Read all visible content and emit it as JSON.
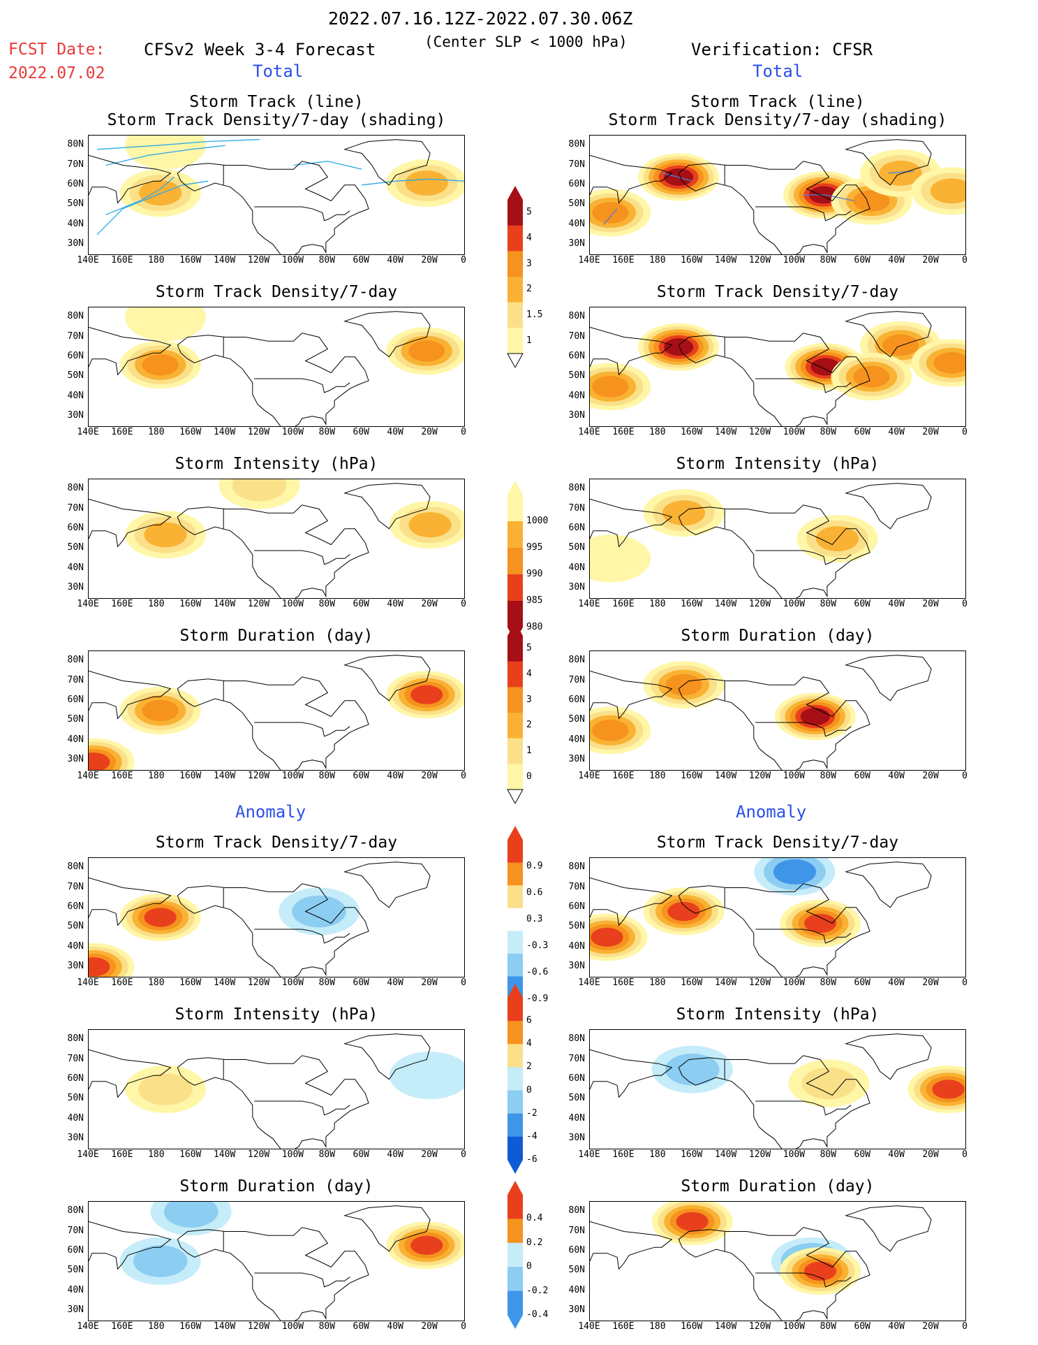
{
  "header": {
    "period": "2022.07.16.12Z-2022.07.30.06Z",
    "condition": "(Center SLP < 1000 hPa)",
    "fcst_label": "FCST Date:",
    "fcst_date": "2022.07.02",
    "forecast_title": "CFSv2 Week 3-4 Forecast",
    "verification_title": "Verification: CFSR",
    "total_left": "Total",
    "total_right": "Total",
    "anomaly_left": "Anomaly",
    "anomaly_right": "Anomaly"
  },
  "axes": {
    "lat_labels": [
      "80N",
      "70N",
      "60N",
      "50N",
      "40N",
      "30N"
    ],
    "lon_labels": [
      "140E",
      "160E",
      "180",
      "160W",
      "140W",
      "120W",
      "100W",
      "80W",
      "60W",
      "40W",
      "20W",
      "0"
    ]
  },
  "colors": {
    "pos": [
      "#fff6a8",
      "#fbe08a",
      "#f9b233",
      "#f6921e",
      "#e8401c",
      "#a50f15"
    ],
    "neg": [
      "#c5ecf9",
      "#8ccdf2",
      "#3f95e8",
      "#0f5bd6"
    ],
    "track_fcst": "#2aa9e8",
    "track_obs": "#4f7fd6"
  },
  "panels": [
    {
      "id": "fcst-track",
      "title1": "Storm Track (line)",
      "title2": "Storm Track Density/7-day (shading)"
    },
    {
      "id": "obs-track",
      "title1": "Storm Track (line)",
      "title2": "Storm Track Density/7-day (shading)"
    },
    {
      "id": "fcst-density",
      "title1": "Storm Track Density/7-day",
      "title2": ""
    },
    {
      "id": "obs-density",
      "title1": "Storm Track Density/7-day",
      "title2": ""
    },
    {
      "id": "fcst-intensity",
      "title1": "Storm Intensity (hPa)",
      "title2": ""
    },
    {
      "id": "obs-intensity",
      "title1": "Storm Intensity (hPa)",
      "title2": ""
    },
    {
      "id": "fcst-duration",
      "title1": "Storm Duration (day)",
      "title2": ""
    },
    {
      "id": "obs-duration",
      "title1": "Storm Duration (day)",
      "title2": ""
    },
    {
      "id": "fcst-anom-density",
      "title1": "Storm Track Density/7-day",
      "title2": ""
    },
    {
      "id": "obs-anom-density",
      "title1": "Storm Track Density/7-day",
      "title2": ""
    },
    {
      "id": "fcst-anom-intensity",
      "title1": "Storm Intensity (hPa)",
      "title2": ""
    },
    {
      "id": "obs-anom-intensity",
      "title1": "Storm Intensity (hPa)",
      "title2": ""
    },
    {
      "id": "fcst-anom-duration",
      "title1": "Storm Duration (day)",
      "title2": ""
    },
    {
      "id": "obs-anom-duration",
      "title1": "Storm Duration (day)",
      "title2": ""
    }
  ],
  "colorbars": {
    "density": [
      "5",
      "4",
      "3",
      "2",
      "1.5",
      "1"
    ],
    "intensity": [
      "1000",
      "995",
      "990",
      "985",
      "980"
    ],
    "duration": [
      "5",
      "4",
      "3",
      "2",
      "1",
      "0"
    ],
    "anom_density": [
      "0.9",
      "0.6",
      "0.3",
      "-0.3",
      "-0.6",
      "-0.9"
    ],
    "anom_intensity": [
      "6",
      "4",
      "2",
      "0",
      "-2",
      "-4",
      "-6"
    ],
    "anom_duration": [
      "0.4",
      "0.2",
      "0",
      "-0.2",
      "-0.4"
    ]
  },
  "chart_data": {
    "type": "heatmap",
    "projection": "lat-lon",
    "lon_range": [
      "140E",
      "0"
    ],
    "lat_range": [
      "25N",
      "85N"
    ],
    "fields": [
      {
        "panel": "fcst-track",
        "blobs": [
          {
            "lon": -178,
            "lat": 56,
            "level": 2
          },
          {
            "lon": -22,
            "lat": 61,
            "level": 2
          },
          {
            "lon": -175,
            "lat": 80,
            "level": 0
          }
        ]
      },
      {
        "panel": "obs-track",
        "blobs": [
          {
            "lon": -168,
            "lat": 64,
            "level": 5
          },
          {
            "lon": -83,
            "lat": 55,
            "level": 5
          },
          {
            "lon": -55,
            "lat": 52,
            "level": 3
          },
          {
            "lon": 152,
            "lat": 46,
            "level": 3
          },
          {
            "lon": -38,
            "lat": 66,
            "level": 2
          },
          {
            "lon": -8,
            "lat": 57,
            "level": 2
          }
        ]
      },
      {
        "panel": "fcst-density",
        "blobs": [
          {
            "lon": -178,
            "lat": 56,
            "level": 3
          },
          {
            "lon": -22,
            "lat": 63,
            "level": 3
          },
          {
            "lon": -175,
            "lat": 80,
            "level": 0
          }
        ]
      },
      {
        "panel": "obs-density",
        "blobs": [
          {
            "lon": -168,
            "lat": 65,
            "level": 5
          },
          {
            "lon": -82,
            "lat": 55,
            "level": 5
          },
          {
            "lon": 152,
            "lat": 45,
            "level": 3
          },
          {
            "lon": -38,
            "lat": 66,
            "level": 3
          },
          {
            "lon": -8,
            "lat": 57,
            "level": 3
          },
          {
            "lon": -55,
            "lat": 50,
            "level": 3
          }
        ]
      },
      {
        "panel": "fcst-intensity",
        "blobs": [
          {
            "lon": -175,
            "lat": 57,
            "level": 2
          },
          {
            "lon": -20,
            "lat": 62,
            "level": 2
          },
          {
            "lon": -120,
            "lat": 82,
            "level": 1
          }
        ]
      },
      {
        "panel": "obs-intensity",
        "blobs": [
          {
            "lon": -165,
            "lat": 68,
            "level": 2
          },
          {
            "lon": -75,
            "lat": 55,
            "level": 2
          },
          {
            "lon": 152,
            "lat": 45,
            "level": 0
          }
        ]
      },
      {
        "panel": "fcst-duration",
        "blobs": [
          {
            "lon": -178,
            "lat": 55,
            "level": 3
          },
          {
            "lon": -22,
            "lat": 63,
            "level": 4
          },
          {
            "lon": 143,
            "lat": 29,
            "level": 4
          }
        ]
      },
      {
        "panel": "obs-duration",
        "blobs": [
          {
            "lon": -165,
            "lat": 68,
            "level": 3
          },
          {
            "lon": -88,
            "lat": 52,
            "level": 5
          },
          {
            "lon": 152,
            "lat": 45,
            "level": 3
          }
        ]
      },
      {
        "panel": "fcst-anom-density",
        "blobs": [
          {
            "lon": -178,
            "lat": 55,
            "level": 4
          },
          {
            "lon": -85,
            "lat": 58,
            "level": -2
          },
          {
            "lon": 143,
            "lat": 30,
            "level": 4
          }
        ]
      },
      {
        "panel": "obs-anom-density",
        "blobs": [
          {
            "lon": -165,
            "lat": 58,
            "level": 4
          },
          {
            "lon": -85,
            "lat": 52,
            "level": 4
          },
          {
            "lon": 150,
            "lat": 45,
            "level": 4
          },
          {
            "lon": -100,
            "lat": 78,
            "level": -3
          }
        ]
      },
      {
        "panel": "fcst-anom-intensity",
        "blobs": [
          {
            "lon": -175,
            "lat": 55,
            "level": 1
          },
          {
            "lon": -20,
            "lat": 62,
            "level": -1
          }
        ]
      },
      {
        "panel": "obs-anom-intensity",
        "blobs": [
          {
            "lon": -160,
            "lat": 65,
            "level": -2
          },
          {
            "lon": -80,
            "lat": 58,
            "level": 1
          },
          {
            "lon": -10,
            "lat": 55,
            "level": 4
          }
        ]
      },
      {
        "panel": "fcst-anom-duration",
        "blobs": [
          {
            "lon": -178,
            "lat": 55,
            "level": -2
          },
          {
            "lon": -22,
            "lat": 63,
            "level": 4
          },
          {
            "lon": -160,
            "lat": 80,
            "level": -2
          }
        ]
      },
      {
        "panel": "obs-anom-duration",
        "blobs": [
          {
            "lon": -90,
            "lat": 55,
            "level": -3
          },
          {
            "lon": -85,
            "lat": 50,
            "level": 4
          },
          {
            "lon": -160,
            "lat": 75,
            "level": 4
          }
        ]
      }
    ]
  }
}
